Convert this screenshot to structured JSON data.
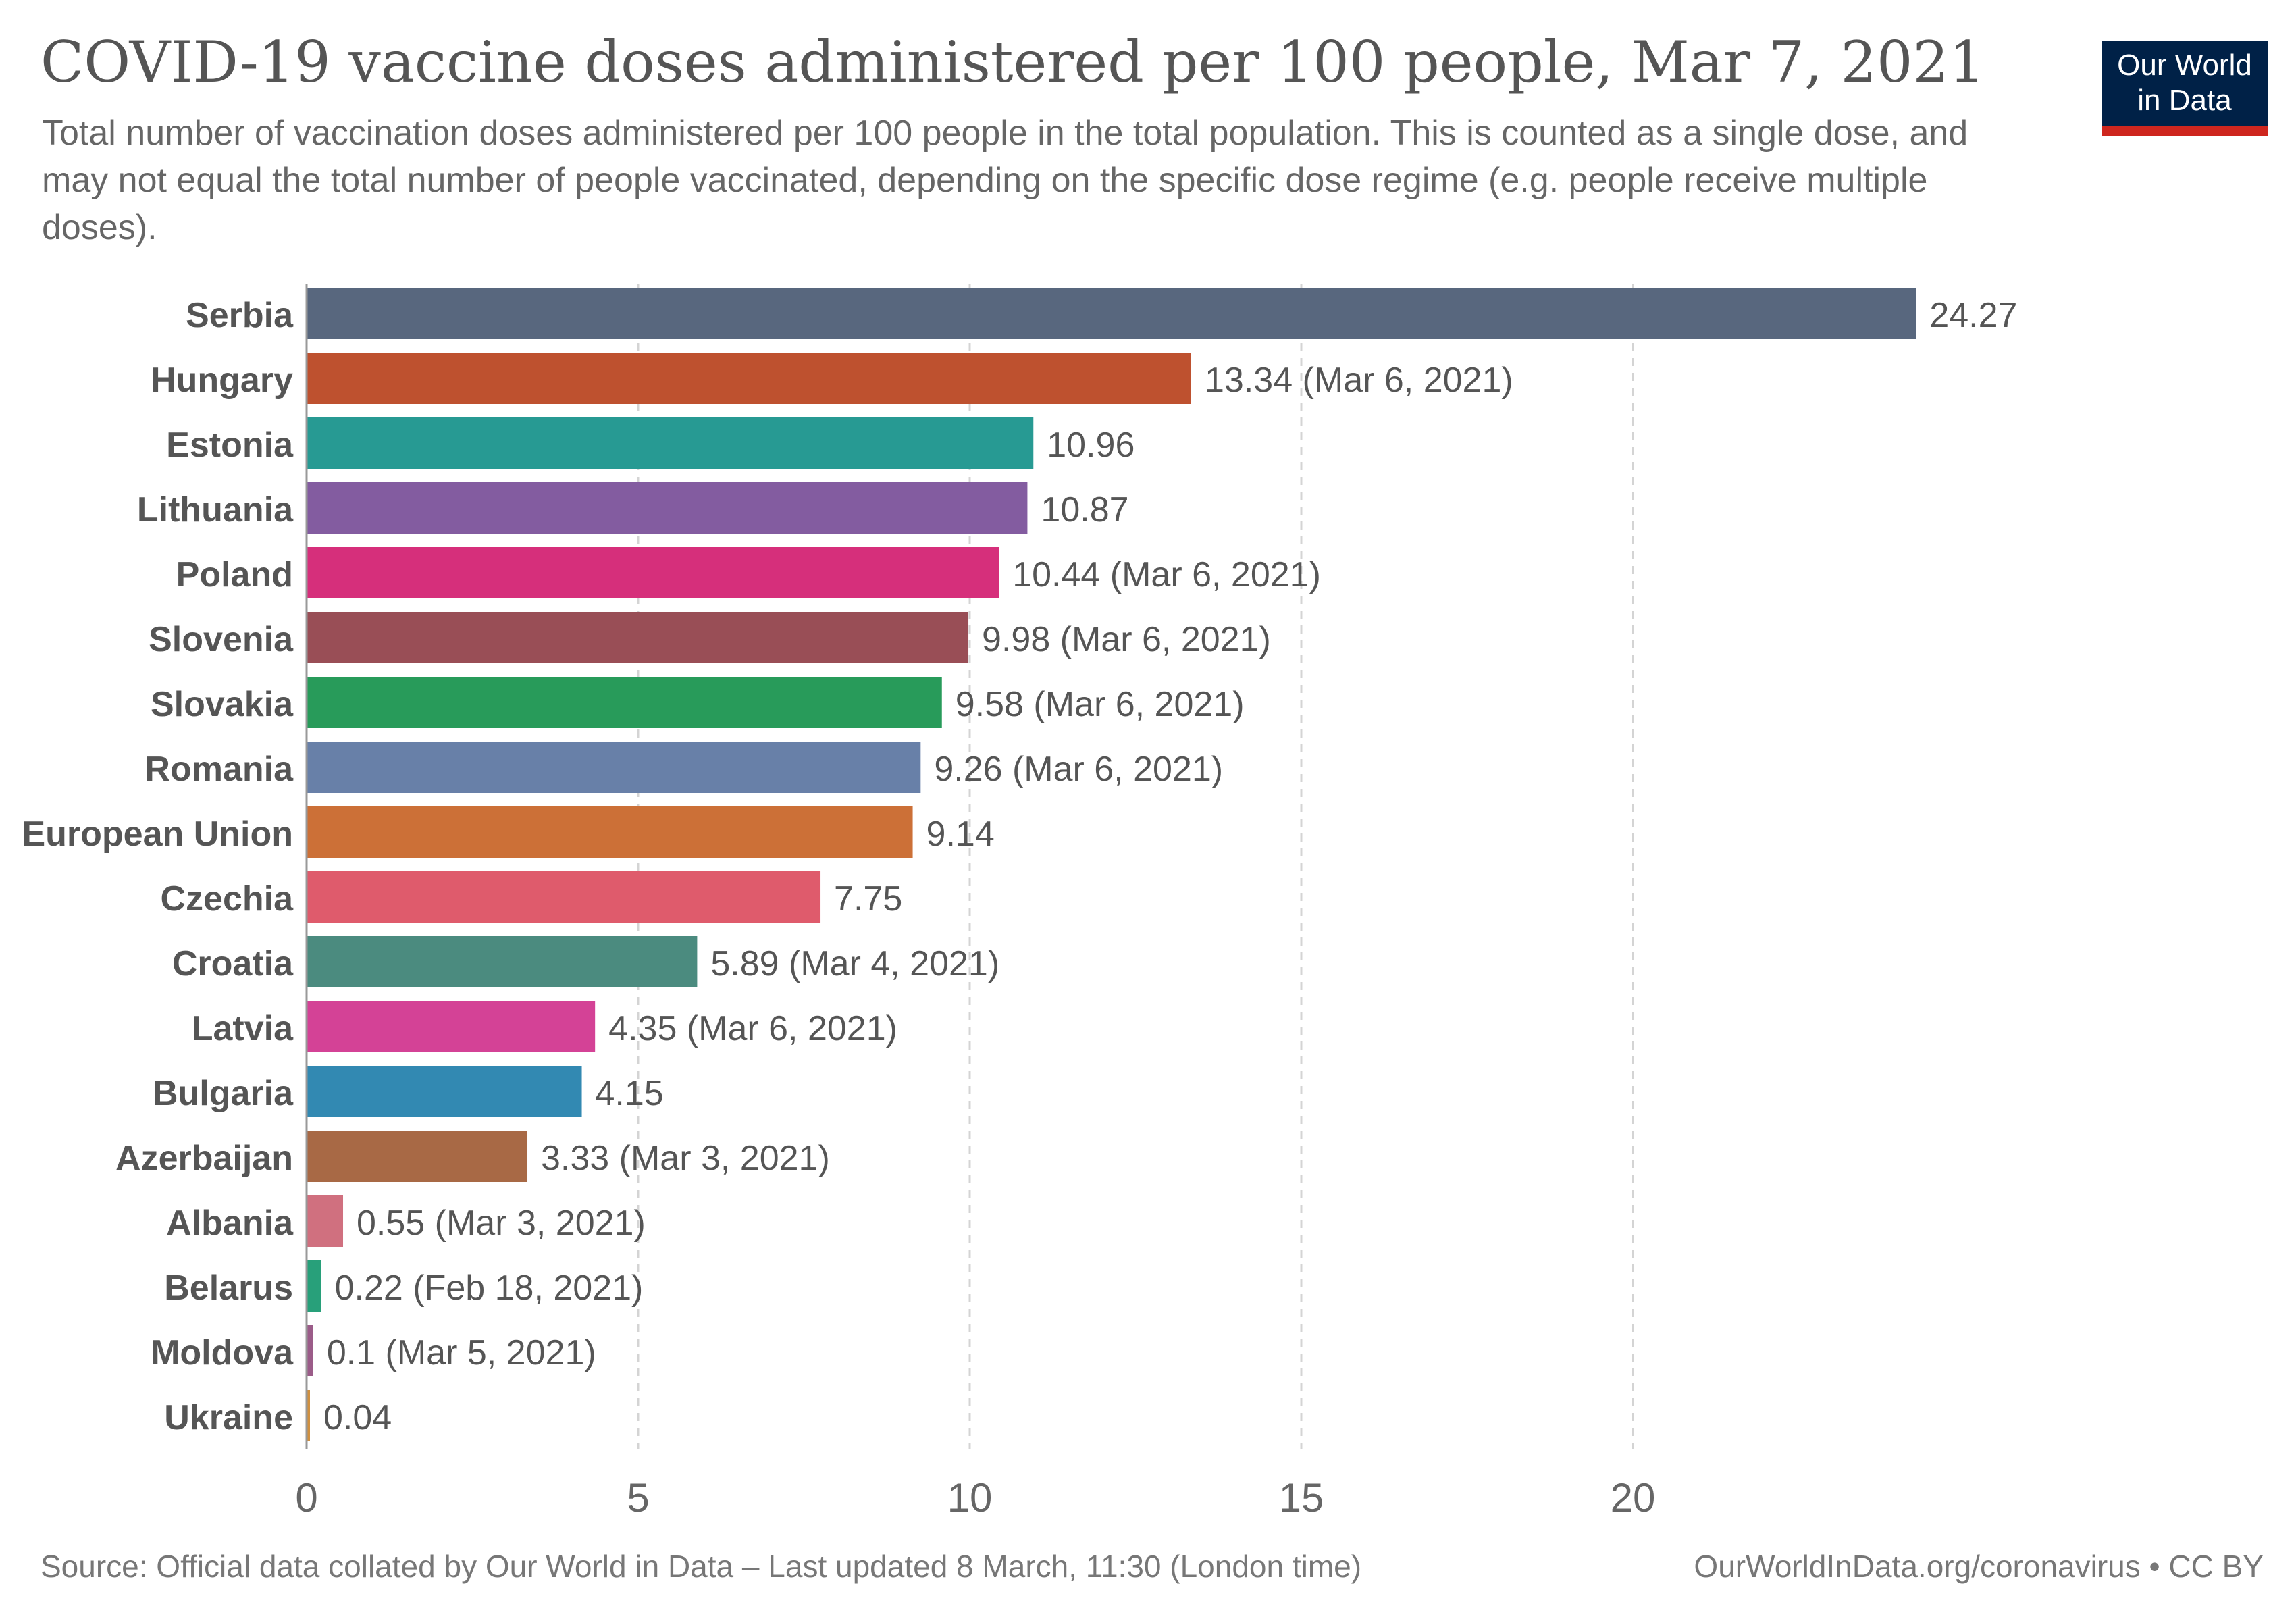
{
  "header": {
    "title": "COVID-19 vaccine doses administered per 100 people, Mar 7, 2021",
    "subtitle": "Total number of vaccination doses administered per 100 people in the total population. This is counted as a single dose, and may not equal the total number of people vaccinated, depending on the specific dose regime (e.g. people receive multiple doses)."
  },
  "logo": {
    "line1": "Our World",
    "line2": "in Data",
    "background": "#002147",
    "accent": "#ce261e"
  },
  "footer": {
    "source": "Source: Official data collated by Our World in Data – Last updated 8 March, 11:30 (London time)",
    "site": "OurWorldInData.org/coronavirus • CC BY"
  },
  "chart_data": {
    "type": "bar",
    "orientation": "horizontal",
    "categories": [
      "Serbia",
      "Hungary",
      "Estonia",
      "Lithuania",
      "Poland",
      "Slovenia",
      "Slovakia",
      "Romania",
      "European Union",
      "Czechia",
      "Croatia",
      "Latvia",
      "Bulgaria",
      "Azerbaijan",
      "Albania",
      "Belarus",
      "Moldova",
      "Ukraine"
    ],
    "values": [
      24.27,
      13.34,
      10.96,
      10.87,
      10.44,
      9.98,
      9.58,
      9.26,
      9.14,
      7.75,
      5.89,
      4.35,
      4.15,
      3.33,
      0.55,
      0.22,
      0.1,
      0.04
    ],
    "value_labels": [
      "24.27",
      "13.34 (Mar 6, 2021)",
      "10.96",
      "10.87",
      "10.44 (Mar 6, 2021)",
      "9.98 (Mar 6, 2021)",
      "9.58 (Mar 6, 2021)",
      "9.26 (Mar 6, 2021)",
      "9.14",
      "7.75",
      "5.89 (Mar 4, 2021)",
      "4.35 (Mar 6, 2021)",
      "4.15",
      "3.33 (Mar 3, 2021)",
      "0.55 (Mar 3, 2021)",
      "0.22 (Feb 18, 2021)",
      "0.1 (Mar 5, 2021)",
      "0.04"
    ],
    "colors": [
      "#58677e",
      "#be512f",
      "#279a93",
      "#835ca0",
      "#d62f7b",
      "#994e56",
      "#289b5a",
      "#6880a8",
      "#cc7037",
      "#df5b6c",
      "#4b8b7f",
      "#d44296",
      "#3289b2",
      "#a86945",
      "#d0707f",
      "#28a07a",
      "#9b5c89",
      "#d09040"
    ],
    "xlim": [
      0,
      25
    ],
    "xticks": [
      0,
      5,
      10,
      15,
      20
    ],
    "grid": true,
    "gridline_style": "dashed-vertical",
    "legend": "none"
  }
}
